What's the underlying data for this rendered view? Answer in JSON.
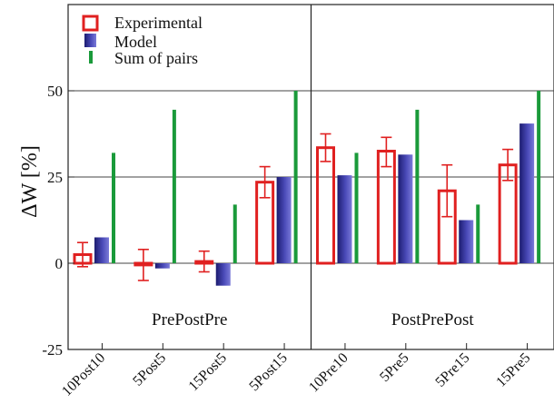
{
  "chart_data": {
    "type": "bar",
    "ylabel": "ΔW [%]",
    "ylim": [
      -25,
      75
    ],
    "yticks": [
      -25,
      0,
      25,
      50
    ],
    "grid": "horizontal at 25 and 50",
    "legend_position": "top-left",
    "colors": {
      "experimental": "#e02020",
      "model": "#3a3aa0",
      "sum_of_pairs": "#1a9a3a"
    },
    "legend": [
      "Experimental",
      "Model",
      "Sum of pairs"
    ],
    "panels": [
      {
        "name": "PrePostPre",
        "categories": [
          "10Post10",
          "5Post5",
          "15Post5",
          "5Post15"
        ]
      },
      {
        "name": "PostPrePost",
        "categories": [
          "10Pre10",
          "5Pre5",
          "5Pre15",
          "15Pre5"
        ]
      }
    ],
    "categories": [
      "10Post10",
      "5Post5",
      "15Post5",
      "5Post15",
      "10Pre10",
      "5Pre5",
      "5Pre15",
      "15Pre5"
    ],
    "series": [
      {
        "name": "Experimental",
        "values": [
          2.5,
          -0.5,
          0.5,
          23.5,
          33.5,
          32.5,
          21,
          28.5
        ],
        "error_low": [
          -1,
          -5,
          -2.5,
          19,
          29.5,
          28,
          13.5,
          24
        ],
        "error_high": [
          6,
          4,
          3.5,
          28,
          37.5,
          36.5,
          28.5,
          33
        ]
      },
      {
        "name": "Model",
        "values": [
          7.5,
          -1.5,
          -6.5,
          25,
          25.5,
          31.5,
          12.5,
          40.5
        ]
      },
      {
        "name": "Sum of pairs",
        "values": [
          32,
          44.5,
          17,
          50,
          32,
          44.5,
          17,
          50
        ]
      }
    ]
  }
}
